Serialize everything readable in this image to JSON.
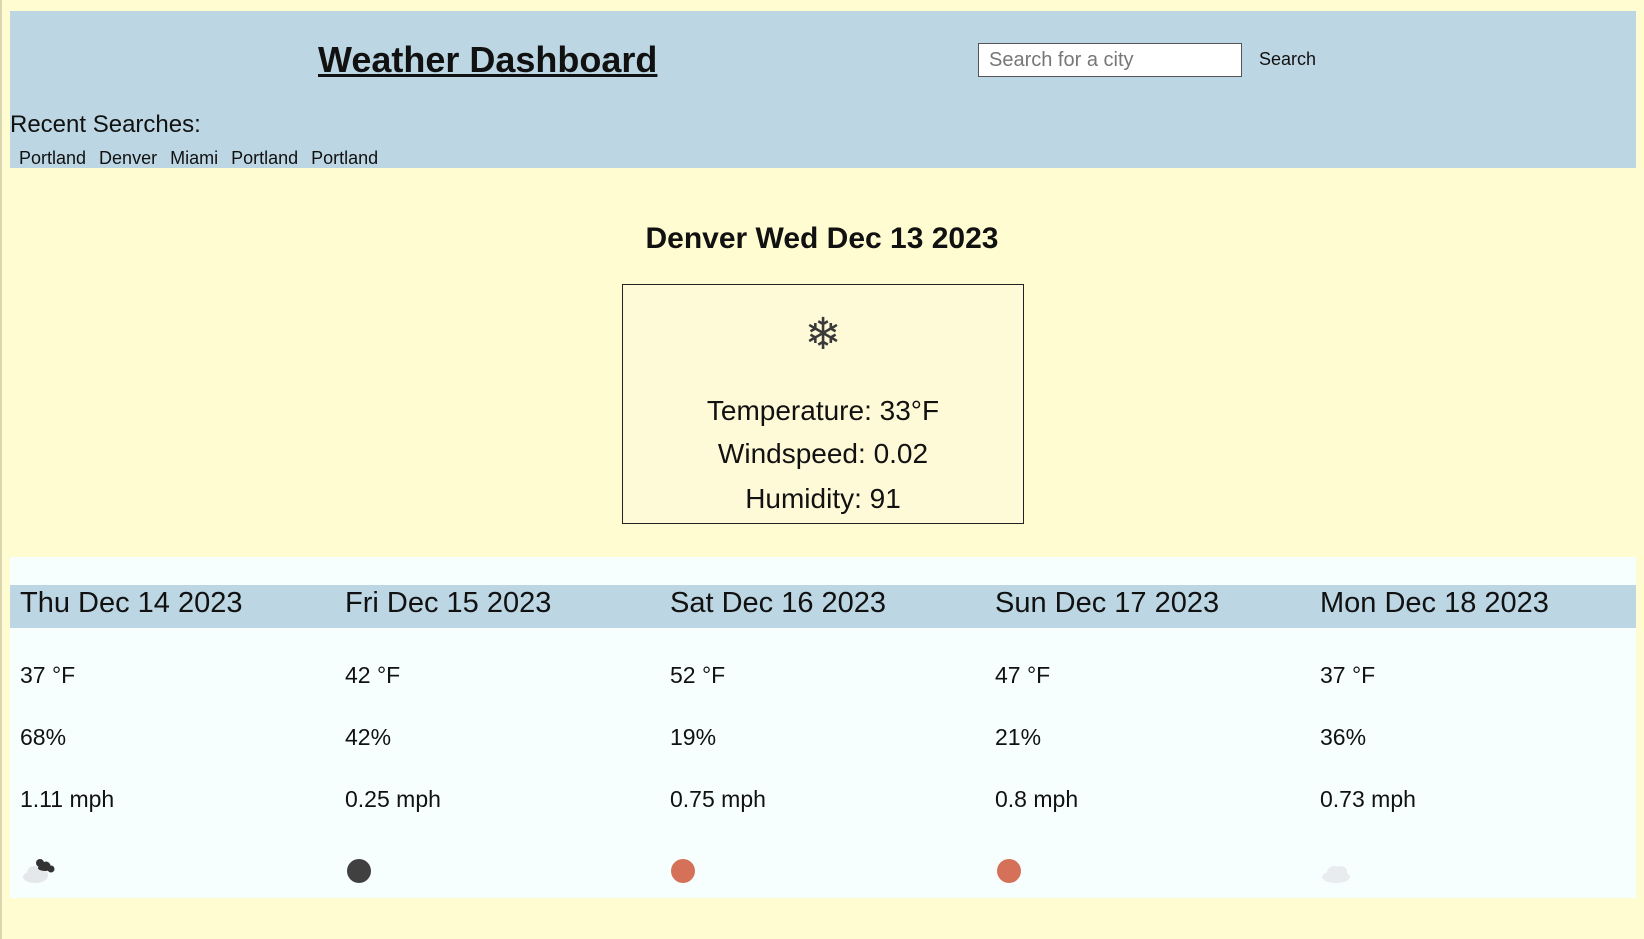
{
  "header": {
    "title": "Weather Dashboard",
    "search_placeholder": "Search for a city",
    "search_value": "",
    "search_button": "Search",
    "recent_label": "Recent Searches:",
    "recent": [
      "Portland",
      "Denver",
      "Miami",
      "Portland",
      "Portland"
    ]
  },
  "current": {
    "title": "Denver Wed Dec 13 2023",
    "icon": "snowflake-icon",
    "temperature": "Temperature: 33°F",
    "windspeed": "Windspeed: 0.02",
    "humidity": "Humidity: 91"
  },
  "forecast": [
    {
      "date": "Thu Dec 14 2023",
      "temp": "37 °F",
      "humidity": "68%",
      "wind": "1.11 mph",
      "icon": "cloud-with-dark-cloud-icon"
    },
    {
      "date": "Fri Dec 15 2023",
      "temp": "42 °F",
      "humidity": "42%",
      "wind": "0.25 mph",
      "icon": "dark-circle-icon"
    },
    {
      "date": "Sat Dec 16 2023",
      "temp": "52 °F",
      "humidity": "19%",
      "wind": "0.75 mph",
      "icon": "sun-icon"
    },
    {
      "date": "Sun Dec 17 2023",
      "temp": "47 °F",
      "humidity": "21%",
      "wind": "0.8 mph",
      "icon": "sun-icon"
    },
    {
      "date": "Mon Dec 18 2023",
      "temp": "37 °F",
      "humidity": "36%",
      "wind": "0.73 mph",
      "icon": "cloud-icon"
    }
  ],
  "colors": {
    "page_background": "#fefcd0",
    "header_background": "#bcd6e3",
    "forecast_background": "#f6fefe",
    "sun": "#d57159",
    "dark_circle": "#404040"
  }
}
